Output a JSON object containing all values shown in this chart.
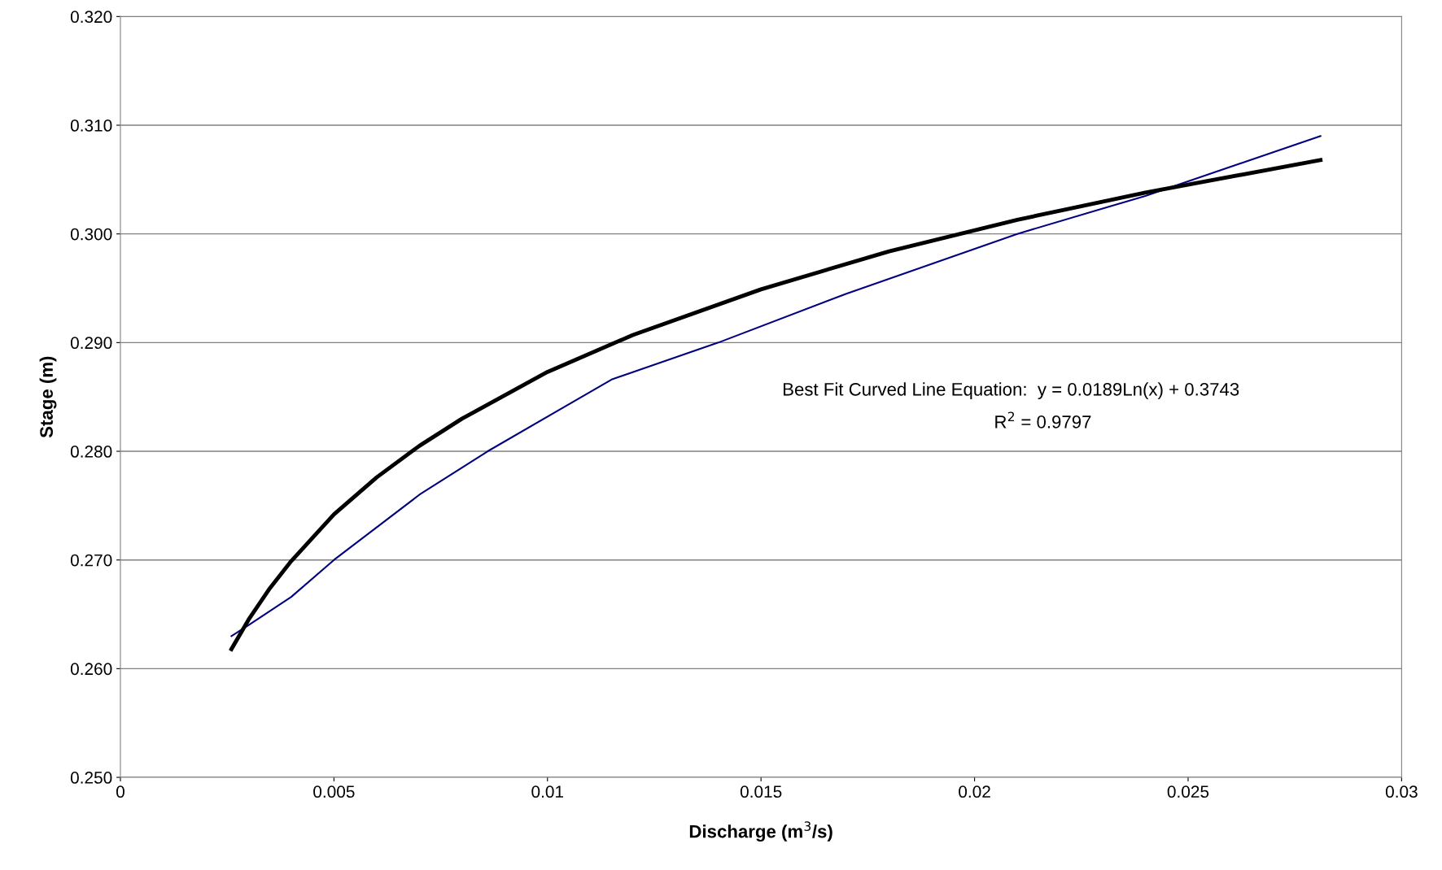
{
  "chart_data": {
    "type": "line",
    "xlabel": "Discharge (m$^{3}$/s)",
    "ylabel": "Stage (m)",
    "xlim": [
      0,
      0.03
    ],
    "xticks": [
      0,
      0.005,
      0.01,
      0.015,
      0.02,
      0.025,
      0.03
    ],
    "ylim": [
      0.25,
      0.32
    ],
    "yticks": [
      {
        "value": 0.25,
        "label": "0.250"
      },
      {
        "value": 0.26,
        "label": "0.260"
      },
      {
        "value": 0.27,
        "label": "0.270"
      },
      {
        "value": 0.28,
        "label": "0.280"
      },
      {
        "value": 0.29,
        "label": "0.290"
      },
      {
        "value": 0.3,
        "label": "0.300"
      },
      {
        "value": 0.31,
        "label": "0.310"
      },
      {
        "value": 0.32,
        "label": "0.320"
      }
    ],
    "grid": "y",
    "marker": "none",
    "line_style": "solid",
    "series": [
      {
        "color": "#000080",
        "x": [
          0.0026,
          0.003,
          0.004,
          0.005,
          0.007,
          0.0086,
          0.0115,
          0.014,
          0.017,
          0.021,
          0.024,
          0.0281
        ],
        "values": [
          0.263,
          0.264,
          0.2666,
          0.27,
          0.276,
          0.28,
          0.2866,
          0.29,
          0.2945,
          0.3,
          0.3035,
          0.309
        ]
      },
      {
        "color": "#000000",
        "x": [
          0.0026,
          0.003,
          0.0035,
          0.004,
          0.005,
          0.006,
          0.007,
          0.008,
          0.01,
          0.012,
          0.015,
          0.018,
          0.021,
          0.024,
          0.0281
        ],
        "values": [
          0.2618,
          0.2645,
          0.2674,
          0.2699,
          0.2742,
          0.2776,
          0.2805,
          0.283,
          0.2873,
          0.2907,
          0.2949,
          0.2984,
          0.3013,
          0.3038,
          0.3068
        ]
      }
    ],
    "annotations": [
      "Best Fit Curved Line Equation:  y = 0.0189Ln(x) + 0.3743",
      "R$^{2}$ = 0.9797"
    ]
  }
}
